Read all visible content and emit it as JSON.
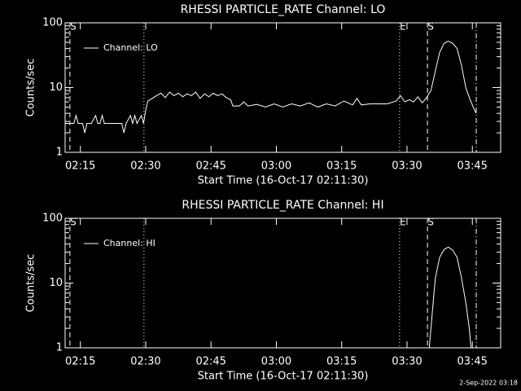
{
  "chart_data": [
    {
      "type": "line",
      "title": "RHESSI PARTICLE_RATE Channel: LO",
      "xlabel": "Start Time (16-Oct-17 02:11:30)",
      "ylabel": "Counts/sec",
      "xlim": [
        0,
        100
      ],
      "xticks": [
        {
          "value": 3.5,
          "label": "02:15"
        },
        {
          "value": 18.5,
          "label": "02:30"
        },
        {
          "value": 33.5,
          "label": "02:45"
        },
        {
          "value": 48.5,
          "label": "03:00"
        },
        {
          "value": 63.5,
          "label": "03:15"
        },
        {
          "value": 78.5,
          "label": "03:30"
        },
        {
          "value": 93.5,
          "label": "03:45"
        }
      ],
      "ylim": [
        1,
        100
      ],
      "yticks": [
        1,
        10,
        100
      ],
      "log": true,
      "markers": [
        {
          "x": 1.1,
          "style": "dashed",
          "label": "S"
        },
        {
          "x": 18.1,
          "style": "dotted"
        },
        {
          "x": 76.8,
          "style": "dotted",
          "label": "E"
        },
        {
          "x": 83.2,
          "style": "dashed",
          "label": "S"
        },
        {
          "x": 94.4,
          "style": "dashdot"
        }
      ],
      "series": [
        {
          "name": "Channel: LO",
          "color": "#ffffff",
          "x": [
            0,
            2,
            2.5,
            3,
            4,
            4.5,
            5,
            6,
            7,
            7.5,
            8,
            8.5,
            9,
            11,
            13,
            13.5,
            14,
            15,
            15.5,
            16,
            16.5,
            17.5,
            18,
            18.5,
            19,
            20,
            21,
            22,
            23,
            24,
            25,
            26,
            27,
            28,
            29,
            30,
            31,
            32,
            33,
            34,
            35,
            36,
            37,
            38,
            38.5,
            40,
            41,
            42,
            44,
            46,
            48,
            50,
            52,
            54,
            56,
            58,
            60,
            62,
            64,
            66,
            67,
            68,
            70,
            72,
            74,
            76,
            77,
            78,
            79,
            80,
            81,
            82,
            83,
            84,
            85,
            86,
            87,
            88,
            89,
            90,
            91,
            92,
            93,
            94,
            94.4
          ],
          "values": [
            2.8,
            2.8,
            3.7,
            2.8,
            2.8,
            2.0,
            2.8,
            2.8,
            3.7,
            2.8,
            2.8,
            3.7,
            2.8,
            2.8,
            2.8,
            2.0,
            2.8,
            3.7,
            2.8,
            3.7,
            2.8,
            3.7,
            2.8,
            4.5,
            6.2,
            6.8,
            7.5,
            8.2,
            7.0,
            8.5,
            7.5,
            8.2,
            7.2,
            8.0,
            7.5,
            8.5,
            6.8,
            8.0,
            7.2,
            8.2,
            7.5,
            8.0,
            7.0,
            6.5,
            5.2,
            5.2,
            6.0,
            5.2,
            5.5,
            5.0,
            5.6,
            5.0,
            5.6,
            5.2,
            5.8,
            5.0,
            5.6,
            5.2,
            6.2,
            5.4,
            6.8,
            5.4,
            5.6,
            5.6,
            5.6,
            6.2,
            7.5,
            6.0,
            6.5,
            6.0,
            7.2,
            5.8,
            7.0,
            9,
            18,
            35,
            48,
            52,
            48,
            40,
            22,
            10,
            6.5,
            4.5,
            4.0
          ]
        }
      ]
    },
    {
      "type": "line",
      "title": "RHESSI PARTICLE_RATE Channel: HI",
      "xlabel": "Start Time (16-Oct-17 02:11:30)",
      "ylabel": "Counts/sec",
      "xlim": [
        0,
        100
      ],
      "xticks": [
        {
          "value": 3.5,
          "label": "02:15"
        },
        {
          "value": 18.5,
          "label": "02:30"
        },
        {
          "value": 33.5,
          "label": "02:45"
        },
        {
          "value": 48.5,
          "label": "03:00"
        },
        {
          "value": 63.5,
          "label": "03:15"
        },
        {
          "value": 78.5,
          "label": "03:30"
        },
        {
          "value": 93.5,
          "label": "03:45"
        }
      ],
      "ylim": [
        1,
        100
      ],
      "yticks": [
        1,
        10,
        100
      ],
      "log": true,
      "markers": [
        {
          "x": 1.1,
          "style": "dashed",
          "label": "S"
        },
        {
          "x": 18.1,
          "style": "dotted"
        },
        {
          "x": 76.8,
          "style": "dotted",
          "label": "E"
        },
        {
          "x": 83.2,
          "style": "dashed",
          "label": "S"
        },
        {
          "x": 94.4,
          "style": "dashdot"
        }
      ],
      "series": [
        {
          "name": "Channel: HI",
          "color": "#ffffff",
          "x": [
            83.6,
            84,
            84.5,
            85,
            86,
            87,
            88,
            89,
            90,
            91,
            92,
            92.8,
            93.2
          ],
          "values": [
            1.0,
            2,
            5,
            12,
            25,
            33,
            36,
            32,
            25,
            12,
            5,
            2,
            1.0
          ]
        }
      ]
    }
  ],
  "footer": "2-Sep-2022 03:18"
}
